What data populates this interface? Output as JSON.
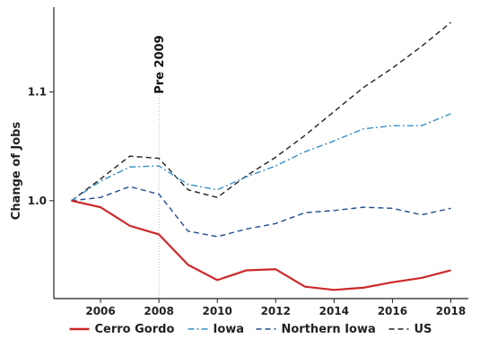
{
  "chart_data": {
    "type": "line",
    "xlabel": "",
    "ylabel": "Change of Jobs",
    "x": [
      2005,
      2006,
      2007,
      2008,
      2009,
      2010,
      2011,
      2012,
      2013,
      2014,
      2015,
      2016,
      2017,
      2018
    ],
    "xticks": [
      2006,
      2008,
      2010,
      2012,
      2014,
      2016,
      2018
    ],
    "xtick_labels": [
      "2006",
      "2008",
      "2010",
      "2012",
      "2014",
      "2016",
      "2018"
    ],
    "yticks": [
      1.0,
      1.1
    ],
    "ytick_labels": [
      "1.0",
      "1.1"
    ],
    "xlim": [
      2004.4,
      2018.6
    ],
    "ylim": [
      0.91,
      1.178
    ],
    "grid": false,
    "legend_position": "bottom",
    "series": [
      {
        "name": "Cerro Gordo",
        "style": "solid",
        "color": "#cc2929",
        "values": [
          1.0,
          0.994,
          0.977,
          0.969,
          0.941,
          0.927,
          0.936,
          0.937,
          0.921,
          0.918,
          0.92,
          0.925,
          0.929,
          0.936
        ]
      },
      {
        "name": "Iowa",
        "style": "dash-dot",
        "color": "#3a8fc4",
        "values": [
          1.0,
          1.018,
          1.031,
          1.032,
          1.015,
          1.01,
          1.022,
          1.032,
          1.045,
          1.055,
          1.066,
          1.069,
          1.069,
          1.08
        ]
      },
      {
        "name": "Northern Iowa",
        "style": "dashed",
        "color": "#1f4e8c",
        "values": [
          1.0,
          1.003,
          1.013,
          1.006,
          0.972,
          0.967,
          0.974,
          0.979,
          0.989,
          0.991,
          0.994,
          0.993,
          0.987,
          0.993
        ]
      },
      {
        "name": "US",
        "style": "dashed",
        "color": "#222222",
        "values": [
          1.0,
          1.02,
          1.041,
          1.039,
          1.01,
          1.003,
          1.023,
          1.04,
          1.06,
          1.082,
          1.104,
          1.122,
          1.142,
          1.164
        ]
      }
    ],
    "annotations": [
      {
        "text": "Pre 2009",
        "x": 2008,
        "vline": true,
        "vline_color": "#bbbbbb"
      }
    ]
  }
}
